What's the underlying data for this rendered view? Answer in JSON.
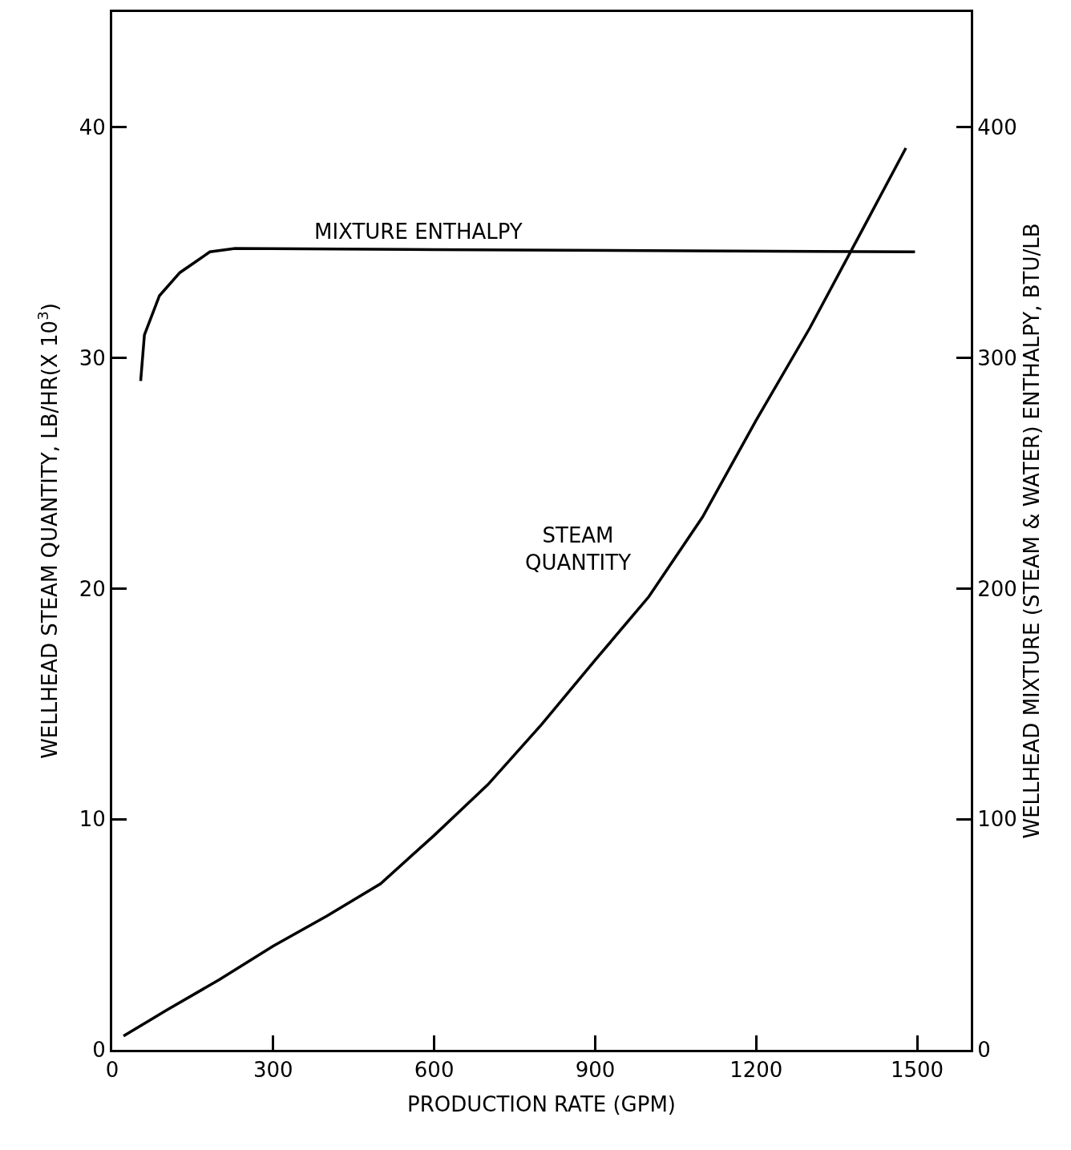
{
  "chart_data": {
    "type": "line",
    "xlabel": "PRODUCTION RATE (GPM)",
    "ylabel": "WELLHEAD STEAM QUANTITY, LB/HR(X 10$^{3}$)",
    "y2label": "WELLHEAD MIXTURE (STEAM & WATER) ENTHALPY, BTU/LB",
    "xlim": [
      0,
      1600
    ],
    "xticks": [
      0,
      300,
      600,
      900,
      1200,
      1500
    ],
    "ylim": [
      0,
      45
    ],
    "yticks": [
      0,
      10,
      20,
      30,
      40
    ],
    "y2lim": [
      0,
      450
    ],
    "y2ticks": [
      0,
      100,
      200,
      300,
      400
    ],
    "legend": false,
    "marker": "none",
    "line_style": "solid",
    "series": [
      {
        "name": "STEAM\nQUANTITY",
        "color": "#000000",
        "x": [
          21,
          100,
          200,
          300,
          400,
          500,
          600,
          700,
          800,
          900,
          1000,
          1100,
          1200,
          1300,
          1400,
          1479
        ],
        "values": [
          0.6,
          1.7,
          3.05,
          4.5,
          5.8,
          7.2,
          9.3,
          11.5,
          14.1,
          16.9,
          19.65,
          23.1,
          27.3,
          31.3,
          35.65,
          39.1
        ]
      },
      {
        "name": "MIXTURE ENTHALPY",
        "color": "#000000",
        "axis": "y2",
        "x": [
          53,
          60,
          88,
          126,
          182,
          229,
          600,
          1000,
          1496
        ],
        "values": [
          290,
          310,
          327,
          337,
          346,
          347.5,
          347,
          346.5,
          346
        ]
      }
    ]
  }
}
